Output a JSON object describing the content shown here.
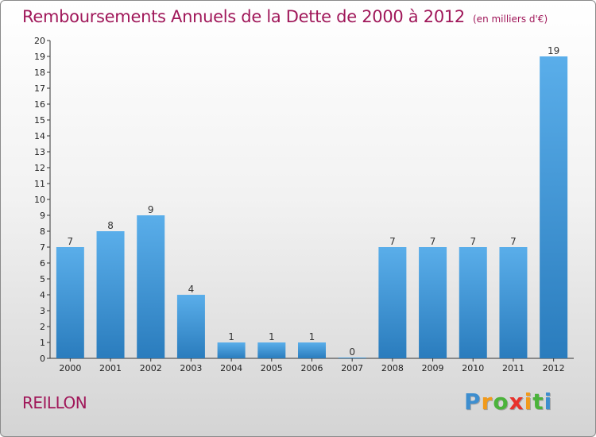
{
  "chart_data": {
    "type": "bar",
    "title": "Remboursements Annuels de la Dette de 2000 à 2012",
    "unit_note": "(en milliers d'€)",
    "categories": [
      "2000",
      "2001",
      "2002",
      "2003",
      "2004",
      "2005",
      "2006",
      "2007",
      "2008",
      "2009",
      "2010",
      "2011",
      "2012"
    ],
    "values": [
      7,
      8,
      9,
      4,
      1,
      1,
      1,
      0,
      7,
      7,
      7,
      7,
      19
    ],
    "value_labels": [
      "7",
      "8",
      "9",
      "4",
      "1",
      "1",
      "1",
      "0",
      "7",
      "7",
      "7",
      "7",
      "19"
    ],
    "yticks": [
      "0",
      "1",
      "2",
      "3",
      "4",
      "5",
      "6",
      "7",
      "8",
      "9",
      "10",
      "11",
      "12",
      "13",
      "14",
      "15",
      "16",
      "17",
      "18",
      "19",
      "20"
    ],
    "ylim": [
      0,
      20
    ],
    "xlabel": "",
    "ylabel": "",
    "grid": false,
    "bar_color_top": "#5aaeea",
    "bar_color_bottom": "#2a7cbd"
  },
  "commune": "REILLON",
  "logo": {
    "letters": [
      "P",
      "r",
      "o",
      "x",
      "i",
      "t",
      "i"
    ],
    "colors": [
      "#3d8ecf",
      "#f29a1a",
      "#4bb33b",
      "#e8322c",
      "#f29a1a",
      "#4bb33b",
      "#3d8ecf"
    ]
  }
}
